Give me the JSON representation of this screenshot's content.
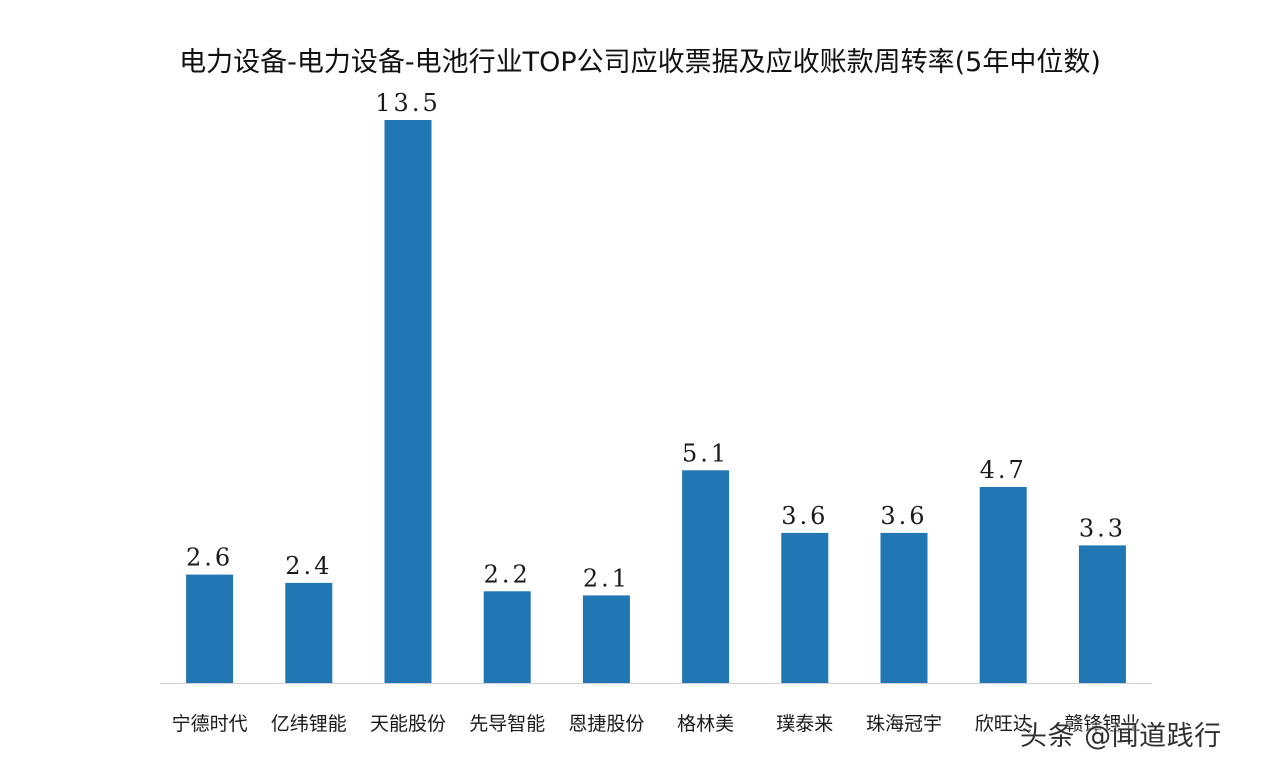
{
  "chart_data": {
    "type": "bar",
    "title": "电力设备-电力设备-电池行业TOP公司应收票据及应收账款周转率(5年中位数)",
    "categories": [
      "宁德时代",
      "亿纬锂能",
      "天能股份",
      "先导智能",
      "恩捷股份",
      "格林美",
      "璞泰来",
      "珠海冠宇",
      "欣旺达",
      "赣锋锂业"
    ],
    "values": [
      2.6,
      2.4,
      13.5,
      2.2,
      2.1,
      5.1,
      3.6,
      3.6,
      4.7,
      3.3
    ],
    "value_labels": [
      "2.6",
      "2.4",
      "13.5",
      "2.2",
      "2.1",
      "5.1",
      "3.6",
      "3.6",
      "4.7",
      "3.3"
    ],
    "ylim": [
      0,
      13.5
    ],
    "grid": false,
    "legend": "none",
    "bar_color": "#2077b4",
    "axis_color": "#d0d0d0"
  },
  "watermark": "头条 @闻道践行"
}
